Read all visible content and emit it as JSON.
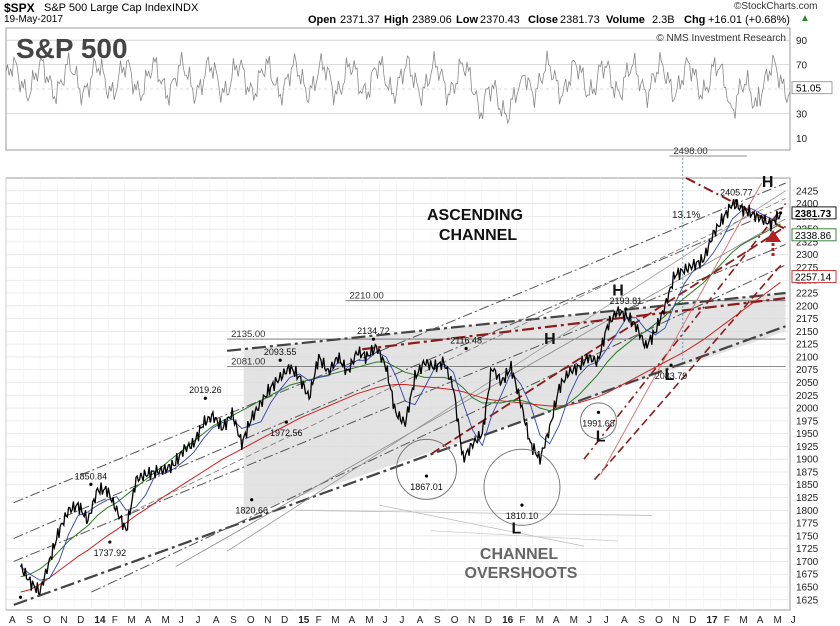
{
  "header": {
    "symbol": "$SPX",
    "name": "S&P 500 Large Cap Index",
    "exchange": "INDX",
    "date": "19-May-2017",
    "open_label": "Open",
    "open": "2371.37",
    "high_label": "High",
    "high": "2389.06",
    "low_label": "Low",
    "low": "2370.43",
    "close_label": "Close",
    "close": "2381.73",
    "volume_label": "Volume",
    "volume": "2.3B",
    "chg_label": "Chg",
    "chg": "+16.01 (+0.68%)",
    "chg_arrow": "▲",
    "watermark": "©StockCharts.com",
    "attribution": "© NMS Investment Research"
  },
  "title": "S&P 500",
  "annotations": {
    "ascending_channel": [
      "ASCENDING",
      "CHANNEL"
    ],
    "channel_overshoots": [
      "CHANNEL",
      "OVERSHOOTS"
    ],
    "pct_move": "13.1%",
    "pivots": [
      {
        "label": "H",
        "date": "2017-04.9",
        "price": 2432
      },
      {
        "label": "H",
        "date": "2016-08.0",
        "price": 2220
      },
      {
        "label": "H",
        "date": "2016-04.0",
        "price": 2125
      },
      {
        "label": "L",
        "date": "2016-02.0",
        "price": 1755
      },
      {
        "label": "L",
        "date": "2016-07.0",
        "price": 1935
      },
      {
        "label": "L",
        "date": "2016-11.0",
        "price": 2055
      }
    ]
  },
  "colors": {
    "price": "#000000",
    "ma_red": "#cc2222",
    "ma_green": "#2a7a2a",
    "ma_blue": "#3344aa",
    "channel_grey": "#444444",
    "channel_dashed": "#555555",
    "trend_red": "#8b1a1a",
    "shade": "#dcdcdc",
    "rsi": "#888888",
    "accent_arrow": "#b22222"
  },
  "chart_data": [
    {
      "type": "line",
      "panel": "RSI",
      "y_ticks": [
        90,
        70,
        50,
        30,
        10
      ],
      "last_value": "51.05",
      "ylim": [
        0,
        100
      ]
    },
    {
      "type": "line",
      "panel": "price",
      "title": "S&P 500",
      "x_start": "2013-08-01",
      "x_end": "2017-06-05",
      "x_ticks": [
        "A",
        "S",
        "O",
        "N",
        "D",
        "14",
        "F",
        "M",
        "A",
        "M",
        "J",
        "J",
        "A",
        "S",
        "O",
        "N",
        "D",
        "15",
        "F",
        "M",
        "A",
        "M",
        "J",
        "J",
        "A",
        "S",
        "O",
        "N",
        "D",
        "16",
        "F",
        "M",
        "A",
        "M",
        "J",
        "J",
        "A",
        "S",
        "O",
        "N",
        "D",
        "17",
        "F",
        "M",
        "A",
        "M",
        "J"
      ],
      "y_ticks": [
        2425,
        2400,
        2375,
        2350,
        2325,
        2300,
        2275,
        2250,
        2225,
        2200,
        2175,
        2150,
        2125,
        2100,
        2075,
        2050,
        2025,
        2000,
        1975,
        1950,
        1925,
        1900,
        1875,
        1850,
        1825,
        1800,
        1775,
        1750,
        1725,
        1700,
        1675,
        1650,
        1625
      ],
      "ylim": [
        1605,
        2450
      ],
      "price_tags": [
        "2381.73",
        "2338.86",
        "2257.14"
      ],
      "horizontal_levels": [
        {
          "label": "2498.00",
          "value": 2498
        },
        {
          "label": "2210.00",
          "value": 2210
        },
        {
          "label": "2135.00",
          "value": 2135
        },
        {
          "label": "2081.00",
          "value": 2081
        }
      ],
      "labeled_points": [
        {
          "date": "2013-08-27",
          "value": 1630,
          "label": ""
        },
        {
          "date": "2013-12-31",
          "value": 1850.84,
          "label": "1850.84"
        },
        {
          "date": "2014-02-03",
          "value": 1737.92,
          "label": "1737.92"
        },
        {
          "date": "2014-07-24",
          "value": 2019.26,
          "label": "2019.26"
        },
        {
          "date": "2014-10-15",
          "value": 1820.66,
          "label": "1820.66"
        },
        {
          "date": "2014-12-05",
          "value": 2093.55,
          "label": "2093.55"
        },
        {
          "date": "2014-12-16",
          "value": 1972.56,
          "label": "1972.56"
        },
        {
          "date": "2015-05-21",
          "value": 2134.72,
          "label": "2134.72"
        },
        {
          "date": "2015-08-24",
          "value": 1867.01,
          "label": "1867.01"
        },
        {
          "date": "2015-11-03",
          "value": 2116.48,
          "label": "2116.48"
        },
        {
          "date": "2016-02-11",
          "value": 1810.1,
          "label": "1810.10"
        },
        {
          "date": "2016-06-27",
          "value": 1991.68,
          "label": "1991.68"
        },
        {
          "date": "2016-08-15",
          "value": 2193.81,
          "label": "2193.81"
        },
        {
          "date": "2016-11-04",
          "value": 2083.79,
          "label": "2083.79"
        },
        {
          "date": "2017-03-01",
          "value": 2405.77,
          "label": "2405.77"
        },
        {
          "date": "2017-05-19",
          "value": 2381.73,
          "label": ""
        }
      ],
      "series": [
        {
          "values": [
            1690,
            1660,
            1640,
            1700,
            1760,
            1800,
            1810,
            1780,
            1840,
            1840,
            1800,
            1760,
            1860,
            1870,
            1875,
            1880,
            1890,
            1920,
            1930,
            1970,
            1985,
            1960,
            1990,
            1930,
            1980,
            2010,
            2040,
            2060,
            2080,
            2060,
            2020,
            2100,
            2070,
            2100,
            2070,
            2110,
            2100,
            2120,
            2080,
            1990,
            1970,
            2060,
            2090,
            2080,
            2090,
            2040,
            1900,
            1930,
            1950,
            2080,
            2050,
            2080,
            2010,
            1930,
            1900,
            1960,
            2040,
            2070,
            2080,
            2100,
            2090,
            2160,
            2190,
            2180,
            2160,
            2120,
            2150,
            2200,
            2260,
            2270,
            2280,
            2290,
            2340,
            2370,
            2400,
            2390,
            2380,
            2370,
            2360,
            2380
          ]
        },
        {
          "values": [
            1670,
            1675,
            1685,
            1700,
            1720,
            1740,
            1755,
            1770,
            1790,
            1805,
            1815,
            1830,
            1845,
            1860,
            1875,
            1890,
            1905,
            1920,
            1935,
            1950,
            1965,
            1975,
            1985,
            1995,
            2005,
            2015,
            2025,
            2035,
            2045,
            2050,
            2055,
            2060,
            2065,
            2070,
            2075,
            2080,
            2085,
            2090,
            2090,
            2080,
            2070,
            2065,
            2060,
            2060,
            2060,
            2055,
            2040,
            2020,
            2010,
            2010,
            2010,
            2015,
            2015,
            2010,
            2000,
            1995,
            2000,
            2010,
            2025,
            2045,
            2065,
            2090,
            2110,
            2125,
            2140,
            2150,
            2165,
            2180,
            2200,
            2215,
            2230,
            2245,
            2265,
            2285,
            2305,
            2320,
            2330,
            2340,
            2350,
            2360
          ]
        },
        {
          "values": [
            1640,
            1645,
            1655,
            1668,
            1682,
            1696,
            1710,
            1722,
            1736,
            1750,
            1762,
            1776,
            1790,
            1802,
            1815,
            1828,
            1840,
            1852,
            1864,
            1876,
            1888,
            1900,
            1910,
            1920,
            1930,
            1940,
            1950,
            1960,
            1970,
            1980,
            1988,
            1996,
            2004,
            2012,
            2020,
            2028,
            2034,
            2040,
            2044,
            2046,
            2046,
            2044,
            2042,
            2040,
            2038,
            2036,
            2032,
            2026,
            2020,
            2016,
            2014,
            2012,
            2010,
            2008,
            2006,
            2004,
            2004,
            2006,
            2010,
            2016,
            2022,
            2030,
            2040,
            2050,
            2060,
            2070,
            2080,
            2090,
            2100,
            2110,
            2122,
            2134,
            2148,
            2162,
            2176,
            2190,
            2204,
            2218,
            2232,
            2246
          ]
        }
      ]
    }
  ]
}
